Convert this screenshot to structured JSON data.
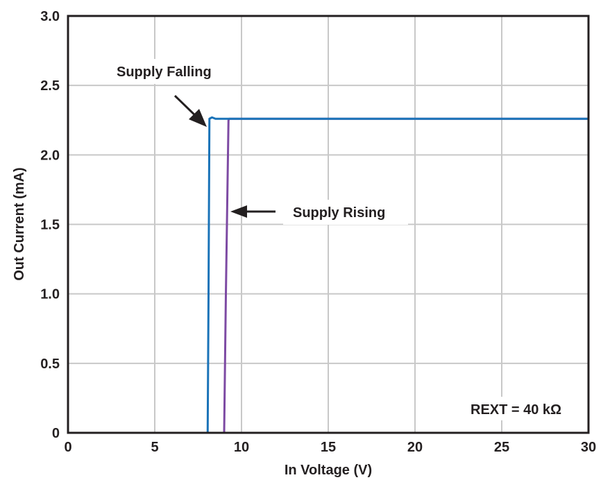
{
  "chart_data": {
    "type": "line",
    "title": "",
    "xlabel": "In Voltage (V)",
    "ylabel": "Out Current (mA)",
    "xlim": [
      0,
      30
    ],
    "ylim": [
      0,
      3.0
    ],
    "x_ticks": [
      0,
      5,
      10,
      15,
      20,
      25,
      30
    ],
    "x_tick_labels": [
      "0",
      "5",
      "10",
      "15",
      "20",
      "25",
      "30"
    ],
    "y_ticks": [
      0,
      0.5,
      1.0,
      1.5,
      2.0,
      2.5,
      3.0
    ],
    "y_tick_labels": [
      "0",
      "0.5",
      "1.0",
      "1.5",
      "2.0",
      "2.5",
      "3.0"
    ],
    "grid": true,
    "legend": "none (inline annotations)",
    "series": [
      {
        "name": "Supply Falling",
        "color": "#1a73b8",
        "x": [
          0,
          7.0,
          8.05,
          8.1,
          8.15,
          8.3,
          8.5,
          30
        ],
        "y": [
          0,
          0,
          0,
          1.0,
          2.26,
          2.27,
          2.26,
          2.26
        ]
      },
      {
        "name": "Supply Rising",
        "color": "#7d4aa3",
        "x": [
          0,
          7.0,
          8.0,
          9.0,
          9.1,
          9.25,
          9.3,
          30
        ],
        "y": [
          0,
          0,
          0,
          0,
          1.0,
          2.25,
          2.26,
          2.26
        ]
      }
    ],
    "annotations": [
      {
        "text": "Supply Falling",
        "points_to": {
          "x": 8.1,
          "y": 2.26
        }
      },
      {
        "text": "Supply Rising",
        "points_to": {
          "x": 9.4,
          "y": 1.6
        }
      },
      {
        "text": "REXT = 40 kΩ",
        "position": "bottom-right"
      }
    ]
  },
  "labels": {
    "supply_falling": "Supply Falling",
    "supply_rising": "Supply Rising",
    "rext": "REXT = 40 kΩ",
    "xlabel": "In Voltage (V)",
    "ylabel": "Out Current (mA)"
  }
}
